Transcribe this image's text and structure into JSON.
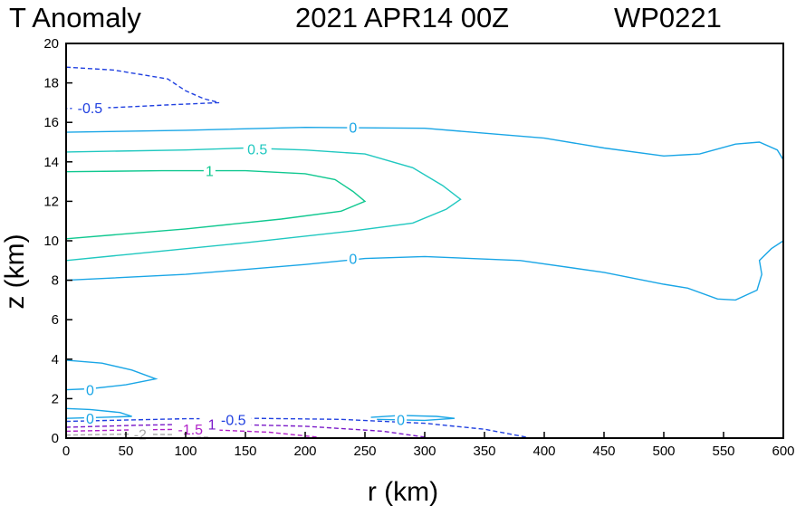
{
  "chart_data": {
    "type": "contour",
    "title": "T Anomaly",
    "datetime": "2021 APR14 00Z",
    "storm_id": "WP0221",
    "xlabel": "r (km)",
    "ylabel": "z (km)",
    "xlim": [
      0,
      600
    ],
    "ylim": [
      0,
      20
    ],
    "xticks": [
      0,
      50,
      100,
      150,
      200,
      250,
      300,
      350,
      400,
      450,
      500,
      550,
      600
    ],
    "yticks": [
      0,
      2,
      4,
      6,
      8,
      10,
      12,
      14,
      16,
      18,
      20
    ],
    "colors": {
      "zero": "#1aa6e6",
      "pos_0_5": "#20c8c0",
      "pos_1": "#10c890",
      "neg_0_5": "#2040e0",
      "neg_1": "#7a18c8",
      "neg_1_5": "#b020c8",
      "neg_2": "#a8a8a8"
    },
    "contours": [
      {
        "level": 0,
        "color_key": "zero",
        "dashed": false,
        "points": [
          [
            0,
            15.5
          ],
          [
            100,
            15.6
          ],
          [
            200,
            15.75
          ],
          [
            300,
            15.7
          ],
          [
            400,
            15.2
          ],
          [
            450,
            14.7
          ],
          [
            500,
            14.3
          ],
          [
            530,
            14.4
          ],
          [
            560,
            14.9
          ],
          [
            580,
            15.0
          ],
          [
            595,
            14.6
          ],
          [
            600,
            14.1
          ]
        ]
      },
      {
        "level": 0.5,
        "color_key": "pos_0_5",
        "dashed": false,
        "points": [
          [
            0,
            14.5
          ],
          [
            100,
            14.6
          ],
          [
            150,
            14.7
          ],
          [
            200,
            14.6
          ],
          [
            250,
            14.4
          ],
          [
            290,
            13.7
          ],
          [
            315,
            12.8
          ],
          [
            330,
            12.1
          ],
          [
            318,
            11.6
          ],
          [
            290,
            10.9
          ],
          [
            240,
            10.5
          ],
          [
            150,
            9.9
          ],
          [
            50,
            9.3
          ],
          [
            0,
            9.0
          ]
        ]
      },
      {
        "level": 1,
        "color_key": "pos_1",
        "dashed": false,
        "points": [
          [
            0,
            13.5
          ],
          [
            80,
            13.55
          ],
          [
            150,
            13.55
          ],
          [
            200,
            13.4
          ],
          [
            225,
            13.1
          ],
          [
            240,
            12.5
          ],
          [
            250,
            12.0
          ],
          [
            230,
            11.5
          ],
          [
            180,
            11.1
          ],
          [
            100,
            10.6
          ],
          [
            0,
            10.1
          ]
        ]
      },
      {
        "level": 0,
        "color_key": "zero",
        "dashed": false,
        "points": [
          [
            0,
            8.0
          ],
          [
            100,
            8.3
          ],
          [
            200,
            8.8
          ],
          [
            250,
            9.1
          ],
          [
            300,
            9.2
          ],
          [
            380,
            9.0
          ],
          [
            450,
            8.4
          ],
          [
            500,
            7.8
          ],
          [
            520,
            7.6
          ],
          [
            545,
            7.05
          ],
          [
            560,
            7.0
          ],
          [
            578,
            7.5
          ],
          [
            582,
            8.3
          ],
          [
            580,
            9.0
          ],
          [
            590,
            9.6
          ],
          [
            600,
            10.0
          ]
        ]
      },
      {
        "level": -0.5,
        "color_key": "neg_0_5",
        "dashed": true,
        "points": [
          [
            0,
            18.8
          ],
          [
            40,
            18.65
          ],
          [
            85,
            18.2
          ],
          [
            100,
            17.6
          ],
          [
            115,
            17.2
          ],
          [
            128,
            17.0
          ],
          [
            90,
            16.9
          ],
          [
            40,
            16.75
          ],
          [
            0,
            16.7
          ]
        ]
      },
      {
        "level": 0,
        "color_key": "zero",
        "dashed": false,
        "points": [
          [
            0,
            3.95
          ],
          [
            30,
            3.8
          ],
          [
            55,
            3.45
          ],
          [
            75,
            3.0
          ],
          [
            50,
            2.7
          ],
          [
            20,
            2.5
          ],
          [
            0,
            2.45
          ]
        ]
      },
      {
        "level": 0,
        "color_key": "zero",
        "dashed": false,
        "points": [
          [
            0,
            1.5
          ],
          [
            20,
            1.45
          ],
          [
            45,
            1.3
          ],
          [
            55,
            1.1
          ],
          [
            30,
            1.05
          ],
          [
            0,
            1.0
          ]
        ]
      },
      {
        "level": 0,
        "color_key": "zero",
        "dashed": false,
        "points": [
          [
            255,
            1.05
          ],
          [
            280,
            1.15
          ],
          [
            310,
            1.1
          ],
          [
            325,
            1.0
          ],
          [
            300,
            0.9
          ],
          [
            260,
            0.95
          ]
        ]
      },
      {
        "level": -0.5,
        "color_key": "neg_0_5",
        "dashed": true,
        "points": [
          [
            0,
            0.85
          ],
          [
            100,
            0.98
          ],
          [
            160,
            1.0
          ],
          [
            230,
            0.95
          ],
          [
            300,
            0.75
          ],
          [
            350,
            0.45
          ],
          [
            385,
            0.05
          ]
        ]
      },
      {
        "level": -1,
        "color_key": "neg_1",
        "dashed": true,
        "points": [
          [
            0,
            0.55
          ],
          [
            60,
            0.65
          ],
          [
            120,
            0.72
          ],
          [
            200,
            0.6
          ],
          [
            265,
            0.35
          ],
          [
            300,
            0.05
          ]
        ]
      },
      {
        "level": -1.5,
        "color_key": "neg_1_5",
        "dashed": true,
        "points": [
          [
            0,
            0.35
          ],
          [
            60,
            0.42
          ],
          [
            110,
            0.45
          ],
          [
            170,
            0.3
          ],
          [
            210,
            0.05
          ]
        ]
      },
      {
        "level": -2,
        "color_key": "neg_2",
        "dashed": true,
        "points": [
          [
            0,
            0.15
          ],
          [
            50,
            0.2
          ],
          [
            90,
            0.18
          ],
          [
            120,
            0.05
          ]
        ]
      }
    ],
    "labels": [
      {
        "text": "0",
        "x": 240,
        "y": 15.75,
        "color_key": "zero"
      },
      {
        "text": "0.5",
        "x": 160,
        "y": 14.65,
        "color_key": "pos_0_5"
      },
      {
        "text": "1",
        "x": 120,
        "y": 13.55,
        "color_key": "pos_1"
      },
      {
        "text": "0",
        "x": 240,
        "y": 9.1,
        "color_key": "zero"
      },
      {
        "text": "-0.5",
        "x": 20,
        "y": 16.75,
        "color_key": "neg_0_5"
      },
      {
        "text": "0",
        "x": 20,
        "y": 2.45,
        "color_key": "zero"
      },
      {
        "text": "0",
        "x": 20,
        "y": 1.0,
        "color_key": "zero"
      },
      {
        "text": "0",
        "x": 280,
        "y": 0.95,
        "color_key": "zero"
      },
      {
        "text": "-0.5",
        "x": 140,
        "y": 0.95,
        "color_key": "neg_0_5"
      },
      {
        "text": "-1",
        "x": 120,
        "y": 0.72,
        "color_key": "neg_1"
      },
      {
        "text": "-1.5",
        "x": 104,
        "y": 0.45,
        "color_key": "neg_1_5"
      },
      {
        "text": "-2",
        "x": 62,
        "y": 0.2,
        "color_key": "neg_2"
      }
    ]
  }
}
